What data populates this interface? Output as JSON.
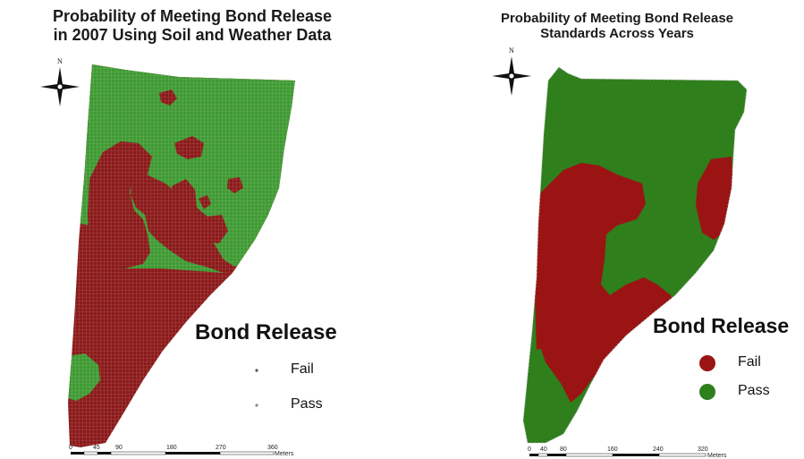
{
  "left": {
    "title_line1": "Probability of Meeting Bond Release",
    "title_line2": "in 2007 Using Soil and Weather Data",
    "north_label": "N",
    "legend": {
      "title": "Bond Release",
      "items": [
        {
          "label": "Fail",
          "color": "#8b1a1a"
        },
        {
          "label": "Pass",
          "color": "#3f9a33"
        }
      ]
    },
    "scale": {
      "ticks": [
        "0",
        "45",
        "90",
        "180",
        "270",
        "360"
      ],
      "unit": "Meters"
    }
  },
  "right": {
    "title_line1": "Probability of Meeting Bond Release",
    "title_line2": "Standards Across Years",
    "north_label": "N",
    "legend": {
      "title": "Bond Release",
      "items": [
        {
          "label": "Fail",
          "color": "#9b1414"
        },
        {
          "label": "Pass",
          "color": "#2f7f1c"
        }
      ]
    },
    "scale": {
      "ticks": [
        "0",
        "40",
        "80",
        "160",
        "240",
        "320"
      ],
      "unit": "Meters"
    }
  },
  "colors": {
    "fail": "#8b1a1a",
    "pass_light": "#3f9a33",
    "pass_dark": "#2f7f1c",
    "fail_dark": "#9b1414"
  }
}
